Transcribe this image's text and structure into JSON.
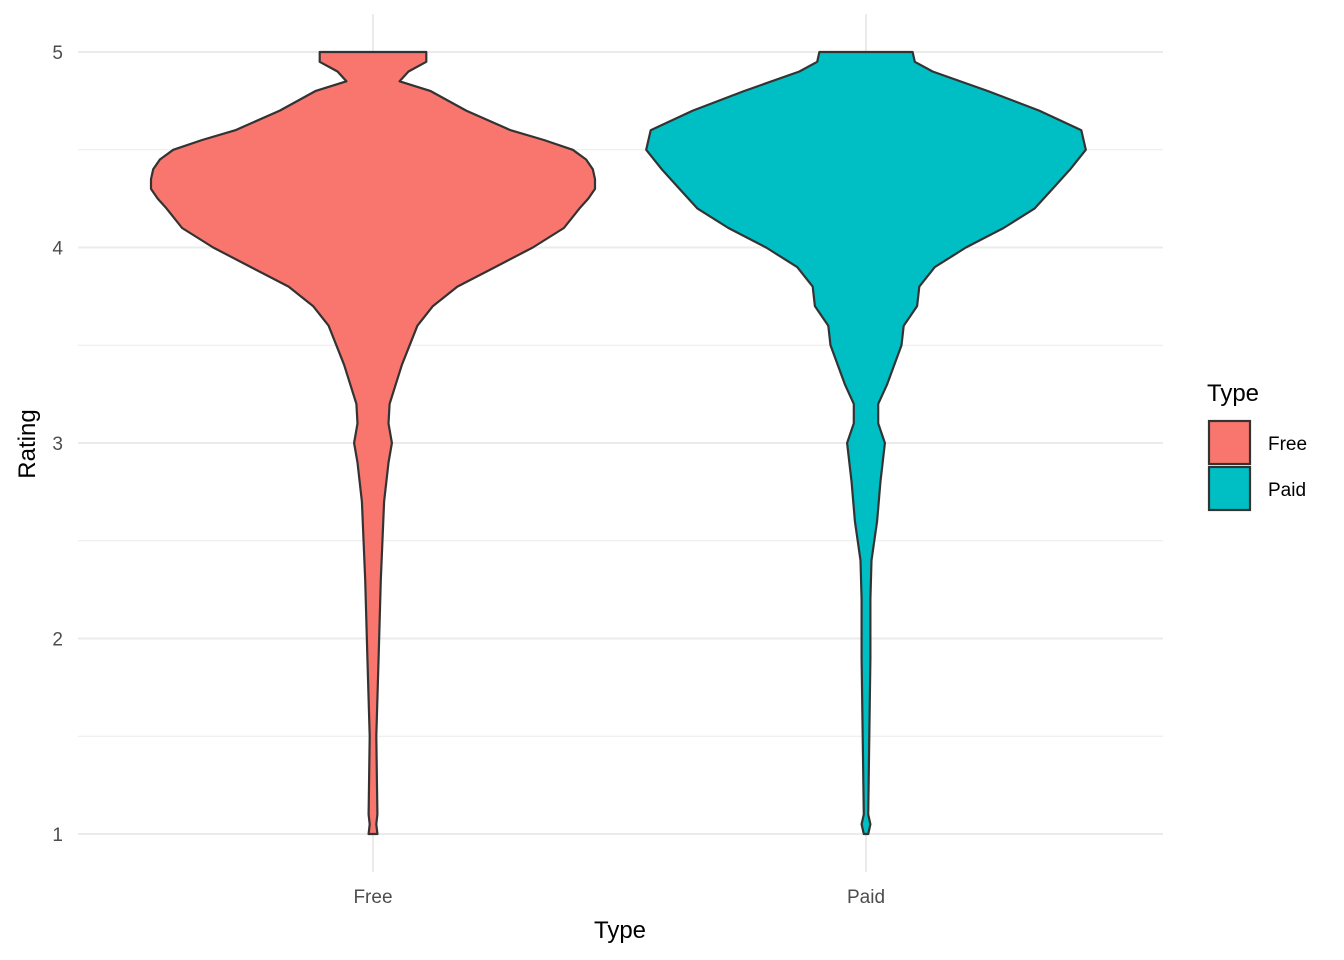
{
  "chart_data": {
    "type": "violin",
    "xlabel": "Type",
    "ylabel": "Rating",
    "categories": [
      "Free",
      "Paid"
    ],
    "ylim": [
      1,
      5
    ],
    "y_ticks": [
      1,
      2,
      3,
      4,
      5
    ],
    "grid": "major-and-minor",
    "legend": {
      "title": "Type",
      "position": "right",
      "entries": [
        "Free",
        "Paid"
      ]
    },
    "colors": {
      "Free": "#F8766D",
      "Paid": "#00BFC4",
      "outline": "#333333",
      "grid": "#ebebeb"
    },
    "series": [
      {
        "category": "Free",
        "density_profile": {
          "y": [
            1.0,
            1.05,
            1.1,
            1.5,
            1.9,
            2.3,
            2.7,
            2.9,
            3.0,
            3.1,
            3.2,
            3.4,
            3.6,
            3.7,
            3.8,
            3.9,
            4.0,
            4.1,
            4.2,
            4.25,
            4.3,
            4.35,
            4.4,
            4.45,
            4.5,
            4.55,
            4.6,
            4.7,
            4.8,
            4.85,
            4.9,
            4.95,
            5.0
          ],
          "relative_width": [
            0.02,
            0.015,
            0.02,
            0.015,
            0.025,
            0.035,
            0.05,
            0.07,
            0.085,
            0.07,
            0.075,
            0.13,
            0.2,
            0.27,
            0.38,
            0.55,
            0.72,
            0.86,
            0.93,
            0.97,
            1.0,
            1.0,
            0.99,
            0.96,
            0.9,
            0.77,
            0.62,
            0.42,
            0.26,
            0.12,
            0.16,
            0.24,
            0.24
          ]
        }
      },
      {
        "category": "Paid",
        "density_profile": {
          "y": [
            1.0,
            1.05,
            1.1,
            1.5,
            1.9,
            2.2,
            2.4,
            2.6,
            2.8,
            3.0,
            3.1,
            3.2,
            3.3,
            3.5,
            3.6,
            3.7,
            3.8,
            3.9,
            4.0,
            4.1,
            4.2,
            4.3,
            4.4,
            4.5,
            4.6,
            4.7,
            4.8,
            4.9,
            4.95,
            5.0
          ],
          "relative_width": [
            0.01,
            0.02,
            0.01,
            0.015,
            0.02,
            0.02,
            0.025,
            0.05,
            0.065,
            0.085,
            0.055,
            0.055,
            0.095,
            0.16,
            0.17,
            0.23,
            0.24,
            0.31,
            0.45,
            0.62,
            0.76,
            0.84,
            0.92,
            0.99,
            0.97,
            0.78,
            0.55,
            0.3,
            0.22,
            0.21
          ]
        }
      }
    ]
  }
}
